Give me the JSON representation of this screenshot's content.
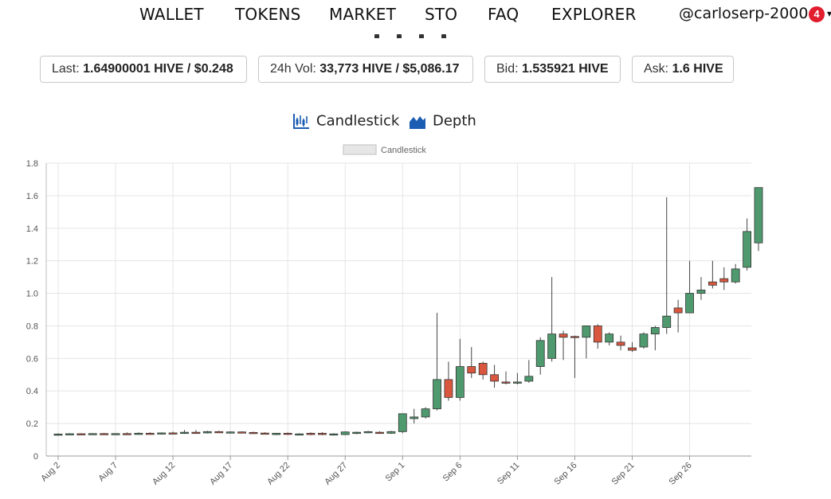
{
  "nav": {
    "items": [
      "WALLET",
      "TOKENS",
      "MARKET",
      "STO",
      "FAQ",
      "EXPLORER"
    ],
    "user": "@carloserp-2000",
    "notifications": "4"
  },
  "stats": {
    "last_label": "Last:",
    "last_value": "1.64900001 HIVE / $0.248",
    "vol_label": "24h Vol:",
    "vol_value": "33,773 HIVE / $5,086.17",
    "bid_label": "Bid:",
    "bid_value": "1.535921 HIVE",
    "ask_label": "Ask:",
    "ask_value": "1.6 HIVE"
  },
  "modes": {
    "candlestick": "Candlestick",
    "depth": "Depth"
  },
  "colors": {
    "up": "#4e9a6e",
    "down": "#d9573e",
    "accent": "#1a5db3",
    "badge": "#e11d2e"
  },
  "chart_data": {
    "type": "candlestick",
    "legend": "Candlestick",
    "legend_position": "top-center",
    "ylim": [
      0,
      1.8
    ],
    "yticks": [
      "0",
      "0.2",
      "0.4",
      "0.6",
      "0.8",
      "1.0",
      "1.2",
      "1.4",
      "1.6",
      "1.8"
    ],
    "xtick_labels": [
      "Aug 2",
      "Aug 7",
      "Aug 12",
      "Aug 17",
      "Aug 22",
      "Aug 27",
      "Sep 1",
      "Sep 6",
      "Sep 11",
      "Sep 16",
      "Sep 21",
      "Sep 26"
    ],
    "grid": true,
    "candles": [
      {
        "date": "Aug 2",
        "open": 0.13,
        "high": 0.14,
        "low": 0.125,
        "close": 0.135
      },
      {
        "date": "Aug 3",
        "open": 0.135,
        "high": 0.14,
        "low": 0.13,
        "close": 0.137
      },
      {
        "date": "Aug 4",
        "open": 0.137,
        "high": 0.14,
        "low": 0.13,
        "close": 0.134
      },
      {
        "date": "Aug 5",
        "open": 0.134,
        "high": 0.14,
        "low": 0.13,
        "close": 0.138
      },
      {
        "date": "Aug 6",
        "open": 0.138,
        "high": 0.142,
        "low": 0.134,
        "close": 0.136
      },
      {
        "date": "Aug 7",
        "open": 0.136,
        "high": 0.14,
        "low": 0.132,
        "close": 0.138
      },
      {
        "date": "Aug 8",
        "open": 0.138,
        "high": 0.145,
        "low": 0.134,
        "close": 0.136
      },
      {
        "date": "Aug 9",
        "open": 0.136,
        "high": 0.145,
        "low": 0.132,
        "close": 0.14
      },
      {
        "date": "Aug 10",
        "open": 0.14,
        "high": 0.146,
        "low": 0.134,
        "close": 0.137
      },
      {
        "date": "Aug 11",
        "open": 0.137,
        "high": 0.145,
        "low": 0.133,
        "close": 0.142
      },
      {
        "date": "Aug 12",
        "open": 0.142,
        "high": 0.15,
        "low": 0.136,
        "close": 0.14
      },
      {
        "date": "Aug 13",
        "open": 0.14,
        "high": 0.16,
        "low": 0.136,
        "close": 0.146
      },
      {
        "date": "Aug 14",
        "open": 0.146,
        "high": 0.16,
        "low": 0.14,
        "close": 0.142
      },
      {
        "date": "Aug 15",
        "open": 0.142,
        "high": 0.155,
        "low": 0.138,
        "close": 0.15
      },
      {
        "date": "Aug 16",
        "open": 0.15,
        "high": 0.155,
        "low": 0.142,
        "close": 0.144
      },
      {
        "date": "Aug 17",
        "open": 0.144,
        "high": 0.152,
        "low": 0.14,
        "close": 0.148
      },
      {
        "date": "Aug 18",
        "open": 0.148,
        "high": 0.152,
        "low": 0.142,
        "close": 0.145
      },
      {
        "date": "Aug 19",
        "open": 0.145,
        "high": 0.15,
        "low": 0.138,
        "close": 0.141
      },
      {
        "date": "Aug 20",
        "open": 0.141,
        "high": 0.146,
        "low": 0.133,
        "close": 0.136
      },
      {
        "date": "Aug 21",
        "open": 0.132,
        "high": 0.142,
        "low": 0.128,
        "close": 0.14
      },
      {
        "date": "Aug 22",
        "open": 0.14,
        "high": 0.145,
        "low": 0.13,
        "close": 0.134
      },
      {
        "date": "Aug 23",
        "open": 0.134,
        "high": 0.14,
        "low": 0.128,
        "close": 0.136
      },
      {
        "date": "Aug 24",
        "open": 0.14,
        "high": 0.145,
        "low": 0.128,
        "close": 0.132
      },
      {
        "date": "Aug 25",
        "open": 0.14,
        "high": 0.146,
        "low": 0.128,
        "close": 0.132
      },
      {
        "date": "Aug 26",
        "open": 0.132,
        "high": 0.14,
        "low": 0.126,
        "close": 0.136
      },
      {
        "date": "Aug 27",
        "open": 0.132,
        "high": 0.152,
        "low": 0.128,
        "close": 0.148
      },
      {
        "date": "Aug 28",
        "open": 0.14,
        "high": 0.15,
        "low": 0.134,
        "close": 0.146
      },
      {
        "date": "Aug 29",
        "open": 0.146,
        "high": 0.155,
        "low": 0.14,
        "close": 0.15
      },
      {
        "date": "Aug 30",
        "open": 0.146,
        "high": 0.152,
        "low": 0.138,
        "close": 0.142
      },
      {
        "date": "Aug 31",
        "open": 0.14,
        "high": 0.155,
        "low": 0.136,
        "close": 0.15
      },
      {
        "date": "Sep 1",
        "open": 0.15,
        "high": 0.26,
        "low": 0.14,
        "close": 0.26
      },
      {
        "date": "Sep 2",
        "open": 0.23,
        "high": 0.29,
        "low": 0.2,
        "close": 0.24
      },
      {
        "date": "Sep 3",
        "open": 0.24,
        "high": 0.3,
        "low": 0.23,
        "close": 0.29
      },
      {
        "date": "Sep 4",
        "open": 0.29,
        "high": 0.88,
        "low": 0.28,
        "close": 0.47
      },
      {
        "date": "Sep 5",
        "open": 0.47,
        "high": 0.58,
        "low": 0.34,
        "close": 0.36
      },
      {
        "date": "Sep 6",
        "open": 0.36,
        "high": 0.72,
        "low": 0.34,
        "close": 0.55
      },
      {
        "date": "Sep 7",
        "open": 0.55,
        "high": 0.67,
        "low": 0.48,
        "close": 0.51
      },
      {
        "date": "Sep 8",
        "open": 0.57,
        "high": 0.58,
        "low": 0.47,
        "close": 0.5
      },
      {
        "date": "Sep 9",
        "open": 0.5,
        "high": 0.56,
        "low": 0.42,
        "close": 0.46
      },
      {
        "date": "Sep 10",
        "open": 0.455,
        "high": 0.52,
        "low": 0.44,
        "close": 0.45
      },
      {
        "date": "Sep 11",
        "open": 0.45,
        "high": 0.51,
        "low": 0.44,
        "close": 0.455
      },
      {
        "date": "Sep 12",
        "open": 0.46,
        "high": 0.59,
        "low": 0.45,
        "close": 0.49
      },
      {
        "date": "Sep 13",
        "open": 0.55,
        "high": 0.73,
        "low": 0.5,
        "close": 0.71
      },
      {
        "date": "Sep 14",
        "open": 0.6,
        "high": 1.1,
        "low": 0.58,
        "close": 0.75
      },
      {
        "date": "Sep 15",
        "open": 0.75,
        "high": 0.77,
        "low": 0.59,
        "close": 0.73
      },
      {
        "date": "Sep 16",
        "open": 0.735,
        "high": 0.74,
        "low": 0.48,
        "close": 0.73
      },
      {
        "date": "Sep 17",
        "open": 0.73,
        "high": 0.8,
        "low": 0.6,
        "close": 0.8
      },
      {
        "date": "Sep 18",
        "open": 0.8,
        "high": 0.81,
        "low": 0.66,
        "close": 0.7
      },
      {
        "date": "Sep 19",
        "open": 0.7,
        "high": 0.76,
        "low": 0.68,
        "close": 0.75
      },
      {
        "date": "Sep 20",
        "open": 0.7,
        "high": 0.74,
        "low": 0.65,
        "close": 0.68
      },
      {
        "date": "Sep 21",
        "open": 0.665,
        "high": 0.7,
        "low": 0.64,
        "close": 0.65
      },
      {
        "date": "Sep 22",
        "open": 0.67,
        "high": 0.76,
        "low": 0.66,
        "close": 0.75
      },
      {
        "date": "Sep 23",
        "open": 0.75,
        "high": 0.8,
        "low": 0.65,
        "close": 0.79
      },
      {
        "date": "Sep 24",
        "open": 0.79,
        "high": 1.59,
        "low": 0.75,
        "close": 0.86
      },
      {
        "date": "Sep 25",
        "open": 0.91,
        "high": 0.96,
        "low": 0.76,
        "close": 0.88
      },
      {
        "date": "Sep 26",
        "open": 0.88,
        "high": 1.2,
        "low": 0.88,
        "close": 1.0
      },
      {
        "date": "Sep 27",
        "open": 1.0,
        "high": 1.1,
        "low": 0.96,
        "close": 1.02
      },
      {
        "date": "Sep 28",
        "open": 1.07,
        "high": 1.2,
        "low": 1.03,
        "close": 1.05
      },
      {
        "date": "Sep 29",
        "open": 1.09,
        "high": 1.16,
        "low": 1.02,
        "close": 1.07
      },
      {
        "date": "Sep 30",
        "open": 1.07,
        "high": 1.18,
        "low": 1.06,
        "close": 1.15
      },
      {
        "date": "Oct 1",
        "open": 1.16,
        "high": 1.46,
        "low": 1.14,
        "close": 1.38
      },
      {
        "date": "Oct 2",
        "open": 1.31,
        "high": 1.65,
        "low": 1.26,
        "close": 1.65
      }
    ]
  }
}
